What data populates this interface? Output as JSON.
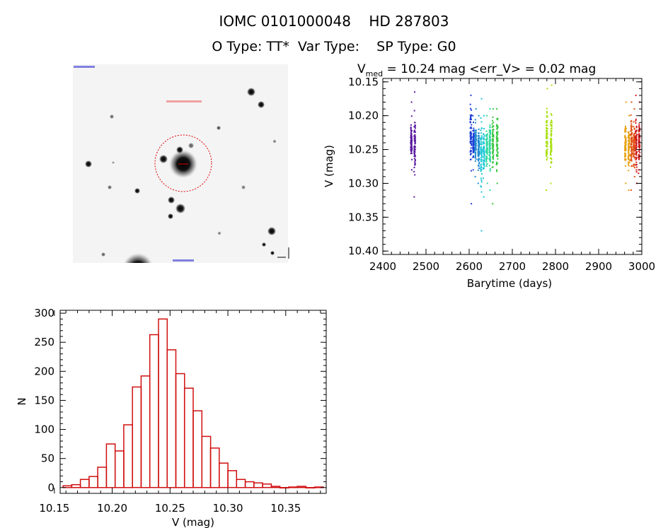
{
  "header": {
    "title": "IOMC 0101000048    HD 287803",
    "subtitle": "O Type: TT*  Var Type:    SP Type: G0",
    "stats_v": "V",
    "stats_sub": "med",
    "stats_rest": " = 10.24 mag <err_V> = 0.02 mag"
  },
  "colors": {
    "histogram": "#d01010",
    "axis": "#000000",
    "sky_bg": "#f4f4f4",
    "aperture": "#e00000"
  },
  "chart_data": [
    {
      "type": "image",
      "name": "finder-chart",
      "aperture_circle": true
    },
    {
      "type": "scatter",
      "xlabel": "Barytime (days)",
      "ylabel": "V (mag)",
      "xlim": [
        2400,
        3000
      ],
      "ylim": [
        10.405,
        10.145
      ],
      "y_inverted": true,
      "xticks": [
        2400,
        2500,
        2600,
        2700,
        2800,
        2900,
        3000
      ],
      "yticks": [
        "10.15",
        "10.20",
        "10.25",
        "10.30",
        "10.35",
        "10.40"
      ],
      "series": [
        {
          "color": "#5a1aa0",
          "x": [
            2466,
            2474
          ],
          "ymin": [
            10.18,
            10.165
          ],
          "ymax": [
            10.28,
            10.32
          ],
          "ycenter": [
            10.235,
            10.24
          ]
        },
        {
          "color": "#1e3fd8",
          "x": [
            2604,
            2610
          ],
          "ymin": [
            10.17,
            10.2
          ],
          "ymax": [
            10.33,
            10.28
          ],
          "ycenter": [
            10.23,
            10.24
          ]
        },
        {
          "color": "#1e8ad0",
          "x": [
            2615,
            2622
          ],
          "ymin": [
            10.19,
            10.2
          ],
          "ymax": [
            10.29,
            10.3
          ],
          "ycenter": [
            10.24,
            10.25
          ]
        },
        {
          "color": "#20c8d8",
          "x": [
            2628,
            2634
          ],
          "ymin": [
            10.175,
            10.2
          ],
          "ymax": [
            10.37,
            10.32
          ],
          "ycenter": [
            10.25,
            10.25
          ]
        },
        {
          "color": "#30d8a0",
          "x": [
            2641,
            2648
          ],
          "ymin": [
            10.2,
            10.19
          ],
          "ymax": [
            10.3,
            10.31
          ],
          "ycenter": [
            10.25,
            10.245
          ]
        },
        {
          "color": "#38c840",
          "x": [
            2655,
            2665
          ],
          "ymin": [
            10.19,
            10.19
          ],
          "ymax": [
            10.33,
            10.3
          ],
          "ycenter": [
            10.24,
            10.24
          ]
        },
        {
          "color": "#a8e010",
          "x": [
            2780,
            2790
          ],
          "ymin": [
            10.16,
            10.155
          ],
          "ymax": [
            10.31,
            10.3
          ],
          "ycenter": [
            10.235,
            10.235
          ]
        },
        {
          "color": "#e8a010",
          "x": [
            2962,
            2970
          ],
          "ymin": [
            10.18,
            10.2
          ],
          "ymax": [
            10.3,
            10.31
          ],
          "ycenter": [
            10.245,
            10.25
          ]
        },
        {
          "color": "#e05010",
          "x": [
            2976,
            2982
          ],
          "ymin": [
            10.18,
            10.19
          ],
          "ymax": [
            10.31,
            10.29
          ],
          "ycenter": [
            10.24,
            10.245
          ]
        },
        {
          "color": "#d01818",
          "x": [
            2987,
            2994
          ],
          "ymin": [
            10.17,
            10.18
          ],
          "ymax": [
            10.3,
            10.285
          ],
          "ycenter": [
            10.245,
            10.24
          ]
        }
      ]
    },
    {
      "type": "bar",
      "histogram": true,
      "xlabel": "V (mag)",
      "ylabel": "N",
      "xlim": [
        10.155,
        10.385
      ],
      "ylim": [
        -10,
        305
      ],
      "xticks": [
        "10.15",
        "10.20",
        "10.25",
        "10.30",
        "10.35"
      ],
      "yticks": [
        "0",
        "50",
        "100",
        "150",
        "200",
        "250",
        "300"
      ],
      "bin_width": 0.0075,
      "bin_starts": [
        10.1575,
        10.165,
        10.1725,
        10.18,
        10.1875,
        10.195,
        10.2025,
        10.21,
        10.2175,
        10.225,
        10.2325,
        10.24,
        10.2475,
        10.255,
        10.2625,
        10.27,
        10.2775,
        10.285,
        10.2925,
        10.3,
        10.3075,
        10.315,
        10.3225,
        10.33,
        10.3375,
        10.345,
        10.3525,
        10.36,
        10.3675,
        10.375
      ],
      "values": [
        3,
        5,
        14,
        19,
        35,
        75,
        63,
        108,
        173,
        192,
        263,
        290,
        237,
        196,
        171,
        132,
        88,
        68,
        42,
        29,
        14,
        10,
        8,
        6,
        2,
        0,
        1,
        2,
        0,
        1
      ]
    }
  ]
}
